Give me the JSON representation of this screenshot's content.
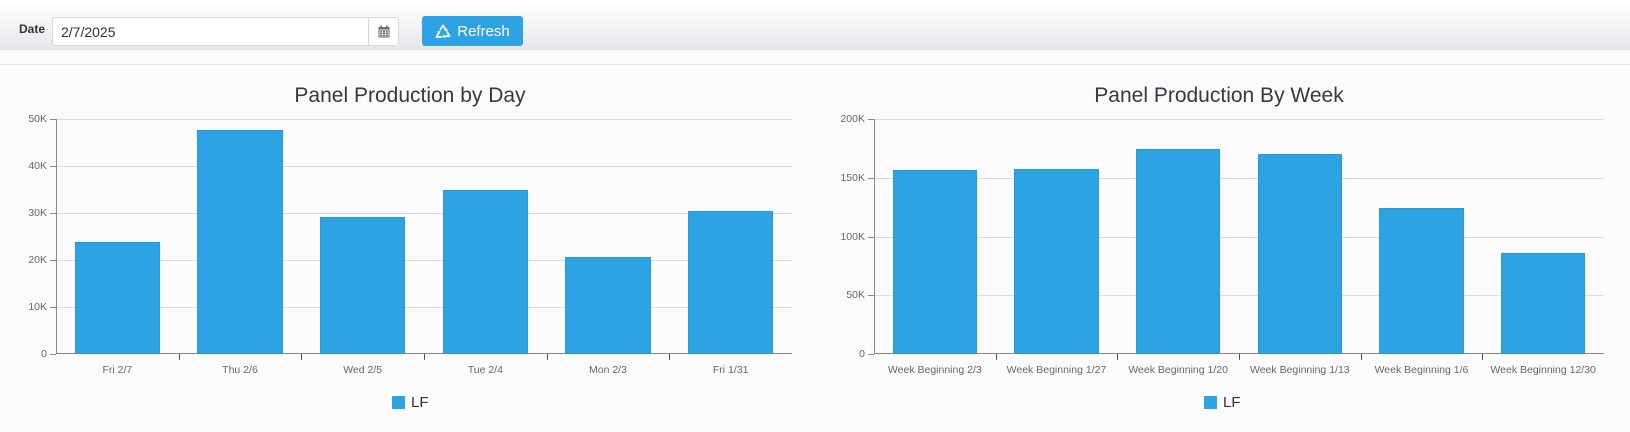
{
  "toolbar": {
    "date_label": "Date",
    "date_value": "2/7/2025",
    "calendar_icon": "calendar-icon",
    "refresh_label": "Refresh",
    "refresh_icon": "recycle-icon",
    "accent_color": "#2ea3e3"
  },
  "chart_data": [
    {
      "type": "bar",
      "title": "Panel Production by Day",
      "categories": [
        "Fri 2/7",
        "Thu 2/6",
        "Wed 2/5",
        "Tue 2/4",
        "Mon 2/3",
        "Fri 1/31"
      ],
      "series": [
        {
          "name": "LF",
          "color": "#2ea3e3",
          "values": [
            23800,
            47700,
            29100,
            35000,
            20600,
            30400
          ]
        }
      ],
      "xlabel": "",
      "ylabel": "",
      "ylim": [
        0,
        50000
      ],
      "yticks": [
        "0",
        "10K",
        "20K",
        "30K",
        "40K",
        "50K"
      ],
      "grid": true,
      "legend_position": "bottom"
    },
    {
      "type": "bar",
      "title": "Panel Production By Week",
      "categories": [
        "Week Beginning 2/3",
        "Week Beginning 1/27",
        "Week Beginning 1/20",
        "Week Beginning 1/13",
        "Week Beginning 1/6",
        "Week Beginning 12/30"
      ],
      "series": [
        {
          "name": "LF",
          "color": "#2ea3e3",
          "values": [
            156700,
            157600,
            174900,
            170400,
            124400,
            85800
          ]
        }
      ],
      "xlabel": "",
      "ylabel": "",
      "ylim": [
        0,
        200000
      ],
      "yticks": [
        "0",
        "50K",
        "100K",
        "150K",
        "200K"
      ],
      "grid": true,
      "legend_position": "bottom"
    }
  ]
}
